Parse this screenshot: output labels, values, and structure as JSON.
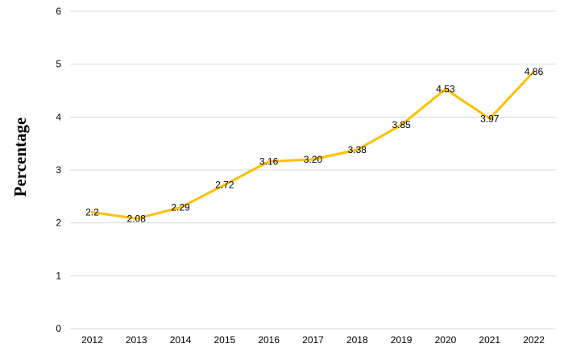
{
  "chart_data": {
    "type": "line",
    "title": "",
    "xlabel": "",
    "ylabel": "Percentage",
    "x": [
      "2012",
      "2013",
      "2014",
      "2015",
      "2016",
      "2017",
      "2018",
      "2019",
      "2020",
      "2021",
      "2022"
    ],
    "series": [
      {
        "values": [
          2.2,
          2.08,
          2.29,
          2.72,
          3.16,
          3.2,
          3.38,
          3.85,
          4.53,
          3.97,
          4.86
        ],
        "labels": [
          "2.2",
          "2.08",
          "2.29",
          "2.72",
          "3.16",
          "3.20",
          "3.38",
          "3.85",
          "4.53",
          "3.97",
          "4.86"
        ],
        "color": "#FFC000"
      }
    ],
    "ylim": [
      0,
      6
    ],
    "yticks": [
      "0",
      "1",
      "2",
      "3",
      "4",
      "5",
      "6"
    ],
    "grid": true,
    "legend": "none"
  }
}
